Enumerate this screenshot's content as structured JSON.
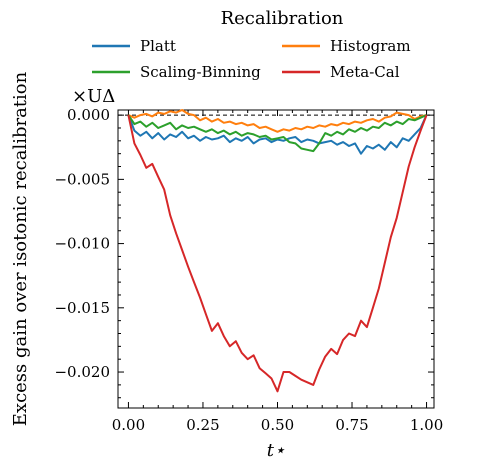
{
  "chart_data": {
    "type": "line",
    "legend": {
      "title": "Recalibration",
      "placement": "top",
      "columns": 2
    },
    "xlabel": "t⋆",
    "ylabel": "Excess gain over isotonic recalibration",
    "y_multiplier_label": "×UΔ",
    "xlim": [
      -0.035,
      1.025
    ],
    "ylim": [
      -0.0228,
      0.0004
    ],
    "xticks": [
      0.0,
      0.25,
      0.5,
      0.75,
      1.0
    ],
    "xtick_labels": [
      "0.00",
      "0.25",
      "0.50",
      "0.75",
      "1.00"
    ],
    "yticks": [
      0.0,
      -0.005,
      -0.01,
      -0.015,
      -0.02
    ],
    "ytick_labels": [
      "0.000",
      "−0.005",
      "−0.010",
      "−0.015",
      "−0.020"
    ],
    "reference_line": {
      "y": 0.0,
      "style": "dashed"
    },
    "series": [
      {
        "name": "Platt",
        "color": "#1f77b4",
        "x": [
          0.0,
          0.02,
          0.04,
          0.06,
          0.08,
          0.1,
          0.12,
          0.14,
          0.16,
          0.18,
          0.2,
          0.22,
          0.24,
          0.26,
          0.28,
          0.3,
          0.32,
          0.34,
          0.36,
          0.38,
          0.4,
          0.42,
          0.44,
          0.46,
          0.48,
          0.5,
          0.52,
          0.54,
          0.56,
          0.58,
          0.6,
          0.62,
          0.64,
          0.66,
          0.68,
          0.7,
          0.72,
          0.74,
          0.76,
          0.78,
          0.8,
          0.82,
          0.84,
          0.86,
          0.88,
          0.9,
          0.92,
          0.94,
          0.96,
          0.98,
          1.0
        ],
        "y": [
          0.0,
          -0.0012,
          -0.0016,
          -0.0013,
          -0.0018,
          -0.0014,
          -0.0019,
          -0.0015,
          -0.0017,
          -0.0013,
          -0.0018,
          -0.0016,
          -0.002,
          -0.0017,
          -0.0019,
          -0.0018,
          -0.0016,
          -0.0021,
          -0.0018,
          -0.002,
          -0.0017,
          -0.0022,
          -0.0019,
          -0.0018,
          -0.0021,
          -0.0019,
          -0.002,
          -0.0018,
          -0.0017,
          -0.0021,
          -0.0019,
          -0.002,
          -0.0022,
          -0.0021,
          -0.002,
          -0.0023,
          -0.0021,
          -0.0024,
          -0.0022,
          -0.003,
          -0.0024,
          -0.0026,
          -0.0023,
          -0.0027,
          -0.0021,
          -0.0025,
          -0.0018,
          -0.002,
          -0.0015,
          -0.001,
          0.0
        ]
      },
      {
        "name": "Histogram",
        "color": "#ff7f0e",
        "x": [
          0.0,
          0.02,
          0.04,
          0.06,
          0.08,
          0.1,
          0.12,
          0.14,
          0.16,
          0.18,
          0.2,
          0.22,
          0.24,
          0.26,
          0.28,
          0.3,
          0.32,
          0.34,
          0.36,
          0.38,
          0.4,
          0.42,
          0.44,
          0.46,
          0.48,
          0.5,
          0.52,
          0.54,
          0.56,
          0.58,
          0.6,
          0.62,
          0.64,
          0.66,
          0.68,
          0.7,
          0.72,
          0.74,
          0.76,
          0.78,
          0.8,
          0.82,
          0.84,
          0.86,
          0.88,
          0.9,
          0.92,
          0.94,
          0.96,
          0.98,
          1.0
        ],
        "y": [
          0.0,
          -0.0002,
          0.0,
          0.0001,
          -0.0001,
          0.0002,
          0.0001,
          0.0003,
          0.0002,
          0.0004,
          0.0001,
          0.0,
          -0.0004,
          -0.0002,
          -0.0005,
          -0.0003,
          -0.0006,
          -0.0005,
          -0.0007,
          -0.0006,
          -0.0008,
          -0.0007,
          -0.001,
          -0.0009,
          -0.0011,
          -0.0013,
          -0.0011,
          -0.0012,
          -0.001,
          -0.0011,
          -0.0009,
          -0.001,
          -0.0008,
          -0.0009,
          -0.0007,
          -0.0008,
          -0.0006,
          -0.0007,
          -0.0005,
          -0.0006,
          -0.0004,
          -0.0003,
          -0.0005,
          -0.0002,
          -0.0001,
          0.0002,
          0.0001,
          0.0,
          -0.0003,
          -0.0001,
          0.0
        ]
      },
      {
        "name": "Scaling-Binning",
        "color": "#2ca02c",
        "x": [
          0.0,
          0.02,
          0.04,
          0.06,
          0.08,
          0.1,
          0.12,
          0.14,
          0.16,
          0.18,
          0.2,
          0.22,
          0.24,
          0.26,
          0.28,
          0.3,
          0.32,
          0.34,
          0.36,
          0.38,
          0.4,
          0.42,
          0.44,
          0.46,
          0.48,
          0.5,
          0.52,
          0.54,
          0.56,
          0.58,
          0.6,
          0.62,
          0.64,
          0.66,
          0.68,
          0.7,
          0.72,
          0.74,
          0.76,
          0.78,
          0.8,
          0.82,
          0.84,
          0.86,
          0.88,
          0.9,
          0.92,
          0.94,
          0.96,
          0.98,
          1.0
        ],
        "y": [
          0.0,
          -0.0007,
          -0.0005,
          -0.0009,
          -0.0006,
          -0.001,
          -0.0008,
          -0.0006,
          -0.0011,
          -0.0008,
          -0.001,
          -0.0009,
          -0.0011,
          -0.0013,
          -0.0011,
          -0.0014,
          -0.0012,
          -0.0015,
          -0.0013,
          -0.0016,
          -0.0014,
          -0.0015,
          -0.0017,
          -0.0016,
          -0.0019,
          -0.0018,
          -0.0017,
          -0.0021,
          -0.0022,
          -0.0026,
          -0.0027,
          -0.0028,
          -0.0022,
          -0.0014,
          -0.0016,
          -0.0013,
          -0.0015,
          -0.0011,
          -0.0013,
          -0.001,
          -0.0012,
          -0.0009,
          -0.001,
          -0.0006,
          -0.0008,
          -0.0005,
          -0.0007,
          -0.0003,
          -0.0004,
          -0.0002,
          0.0
        ]
      },
      {
        "name": "Meta-Cal",
        "color": "#d62728",
        "x": [
          0.0,
          0.02,
          0.04,
          0.06,
          0.08,
          0.1,
          0.12,
          0.14,
          0.16,
          0.18,
          0.2,
          0.22,
          0.24,
          0.26,
          0.28,
          0.3,
          0.32,
          0.34,
          0.36,
          0.38,
          0.4,
          0.42,
          0.44,
          0.46,
          0.48,
          0.5,
          0.52,
          0.54,
          0.56,
          0.58,
          0.6,
          0.62,
          0.64,
          0.66,
          0.68,
          0.7,
          0.72,
          0.74,
          0.76,
          0.78,
          0.8,
          0.82,
          0.84,
          0.86,
          0.88,
          0.9,
          0.92,
          0.94,
          0.96,
          0.98,
          1.0
        ],
        "y": [
          0.0,
          -0.0022,
          -0.0031,
          -0.0041,
          -0.0038,
          -0.0048,
          -0.0058,
          -0.0078,
          -0.0092,
          -0.0105,
          -0.0118,
          -0.013,
          -0.0142,
          -0.0155,
          -0.0168,
          -0.0162,
          -0.0172,
          -0.018,
          -0.0176,
          -0.0185,
          -0.019,
          -0.0187,
          -0.0197,
          -0.0201,
          -0.0205,
          -0.0215,
          -0.02,
          -0.02,
          -0.0203,
          -0.0206,
          -0.0208,
          -0.021,
          -0.0198,
          -0.0188,
          -0.0182,
          -0.0186,
          -0.0175,
          -0.017,
          -0.0172,
          -0.016,
          -0.0165,
          -0.015,
          -0.0135,
          -0.0115,
          -0.0095,
          -0.008,
          -0.006,
          -0.004,
          -0.0025,
          -0.0012,
          0.0
        ]
      }
    ]
  }
}
